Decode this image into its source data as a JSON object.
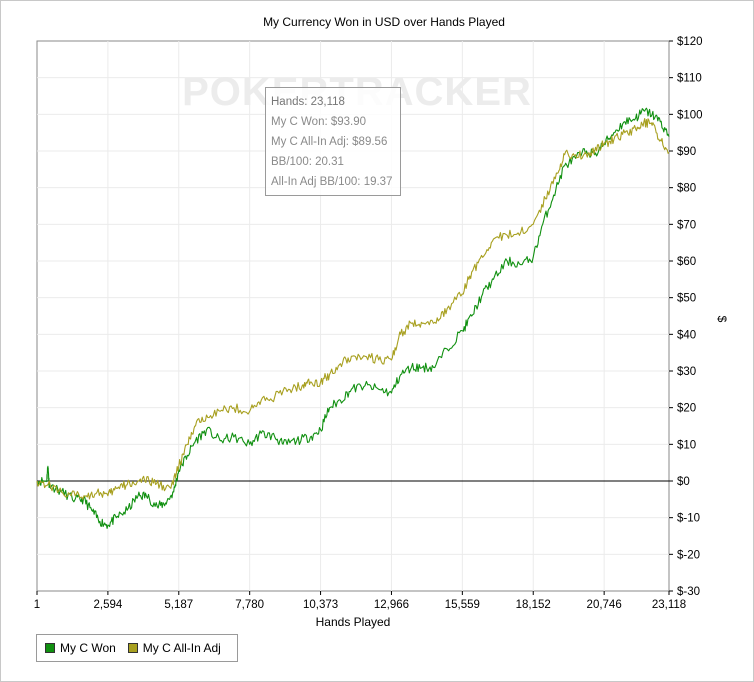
{
  "chart_data": {
    "type": "line",
    "title": "My Currency Won in USD over Hands Played",
    "xlabel": "Hands Played",
    "ylabel": "$",
    "xlim": [
      1,
      23118
    ],
    "ylim": [
      -30,
      120
    ],
    "x_ticks": [
      "1",
      "2,594",
      "5,187",
      "7,780",
      "10,373",
      "12,966",
      "15,559",
      "18,152",
      "20,746",
      "23,118"
    ],
    "y_ticks": [
      "$-30",
      "$-20",
      "$-10",
      "$0",
      "$10",
      "$20",
      "$30",
      "$40",
      "$50",
      "$60",
      "$70",
      "$80",
      "$90",
      "$100",
      "$110",
      "$120"
    ],
    "grid": true,
    "legend_position": "bottom-left",
    "series": [
      {
        "name": "My C Won",
        "color": "#109010",
        "points": [
          [
            1,
            0
          ],
          [
            350,
            0
          ],
          [
            400,
            4
          ],
          [
            450,
            -1
          ],
          [
            900,
            -3
          ],
          [
            1400,
            -5
          ],
          [
            1700,
            -5
          ],
          [
            2000,
            -8
          ],
          [
            2300,
            -11
          ],
          [
            2594,
            -12
          ],
          [
            2900,
            -10
          ],
          [
            3300,
            -8
          ],
          [
            3700,
            -4
          ],
          [
            4000,
            -4
          ],
          [
            4400,
            -7
          ],
          [
            4700,
            -6
          ],
          [
            5000,
            -3
          ],
          [
            5187,
            3
          ],
          [
            5500,
            7
          ],
          [
            5800,
            11
          ],
          [
            6200,
            14
          ],
          [
            6700,
            11
          ],
          [
            7200,
            12
          ],
          [
            7780,
            10
          ],
          [
            8200,
            13
          ],
          [
            8700,
            12
          ],
          [
            9000,
            10
          ],
          [
            9500,
            11
          ],
          [
            10000,
            12
          ],
          [
            10373,
            14
          ],
          [
            10700,
            20
          ],
          [
            11100,
            22
          ],
          [
            11500,
            25
          ],
          [
            12000,
            26
          ],
          [
            12500,
            25
          ],
          [
            12966,
            24
          ],
          [
            13300,
            29
          ],
          [
            13700,
            31
          ],
          [
            14100,
            31
          ],
          [
            14500,
            31
          ],
          [
            15000,
            36
          ],
          [
            15559,
            41
          ],
          [
            15900,
            45
          ],
          [
            16300,
            51
          ],
          [
            16700,
            55
          ],
          [
            17200,
            60
          ],
          [
            17700,
            59
          ],
          [
            18152,
            61
          ],
          [
            18500,
            70
          ],
          [
            18900,
            78
          ],
          [
            19300,
            86
          ],
          [
            19700,
            88
          ],
          [
            20100,
            90
          ],
          [
            20400,
            89
          ],
          [
            20746,
            92
          ],
          [
            21100,
            95
          ],
          [
            21500,
            98
          ],
          [
            21900,
            99
          ],
          [
            22200,
            101
          ],
          [
            22500,
            100
          ],
          [
            22800,
            98
          ],
          [
            23118,
            93.9
          ]
        ]
      },
      {
        "name": "My C All-In Adj",
        "color": "#a8a020",
        "points": [
          [
            1,
            0
          ],
          [
            400,
            -1
          ],
          [
            900,
            -3
          ],
          [
            1400,
            -4
          ],
          [
            1800,
            -4
          ],
          [
            2200,
            -3
          ],
          [
            2594,
            -4
          ],
          [
            2900,
            -2
          ],
          [
            3300,
            -1
          ],
          [
            3700,
            0
          ],
          [
            4100,
            0
          ],
          [
            4500,
            -1
          ],
          [
            4900,
            -2
          ],
          [
            5187,
            4
          ],
          [
            5500,
            10
          ],
          [
            5800,
            15
          ],
          [
            6200,
            18
          ],
          [
            6700,
            19
          ],
          [
            7200,
            20
          ],
          [
            7780,
            19
          ],
          [
            8200,
            22
          ],
          [
            8700,
            23
          ],
          [
            9200,
            25
          ],
          [
            9700,
            26
          ],
          [
            10000,
            27
          ],
          [
            10373,
            27
          ],
          [
            10700,
            29
          ],
          [
            11100,
            32
          ],
          [
            11500,
            34
          ],
          [
            12000,
            34
          ],
          [
            12500,
            33
          ],
          [
            12966,
            33
          ],
          [
            13300,
            40
          ],
          [
            13700,
            43
          ],
          [
            14100,
            43
          ],
          [
            14600,
            43
          ],
          [
            15000,
            47
          ],
          [
            15559,
            51
          ],
          [
            15900,
            57
          ],
          [
            16300,
            61
          ],
          [
            16700,
            66
          ],
          [
            17200,
            67
          ],
          [
            17700,
            68
          ],
          [
            18152,
            70
          ],
          [
            18600,
            77
          ],
          [
            19000,
            84
          ],
          [
            19300,
            89
          ],
          [
            19700,
            89
          ],
          [
            20100,
            89
          ],
          [
            20400,
            90
          ],
          [
            20746,
            92
          ],
          [
            21100,
            93
          ],
          [
            21500,
            95
          ],
          [
            21900,
            96
          ],
          [
            22200,
            98
          ],
          [
            22500,
            97
          ],
          [
            22800,
            93
          ],
          [
            23118,
            89.56
          ]
        ]
      }
    ]
  },
  "watermark": "POKERTRACKER",
  "tooltip": {
    "hands": "Hands: 23,118",
    "won": "My C Won: $93.90",
    "allin": "My C All-In Adj: $89.56",
    "bb100": "BB/100: 20.31",
    "allin_bb100": "All-In Adj BB/100: 19.37"
  },
  "legend": {
    "won_label": "My C Won",
    "allin_label": "My C All-In Adj",
    "won_color": "#109010",
    "allin_color": "#a8a020"
  }
}
